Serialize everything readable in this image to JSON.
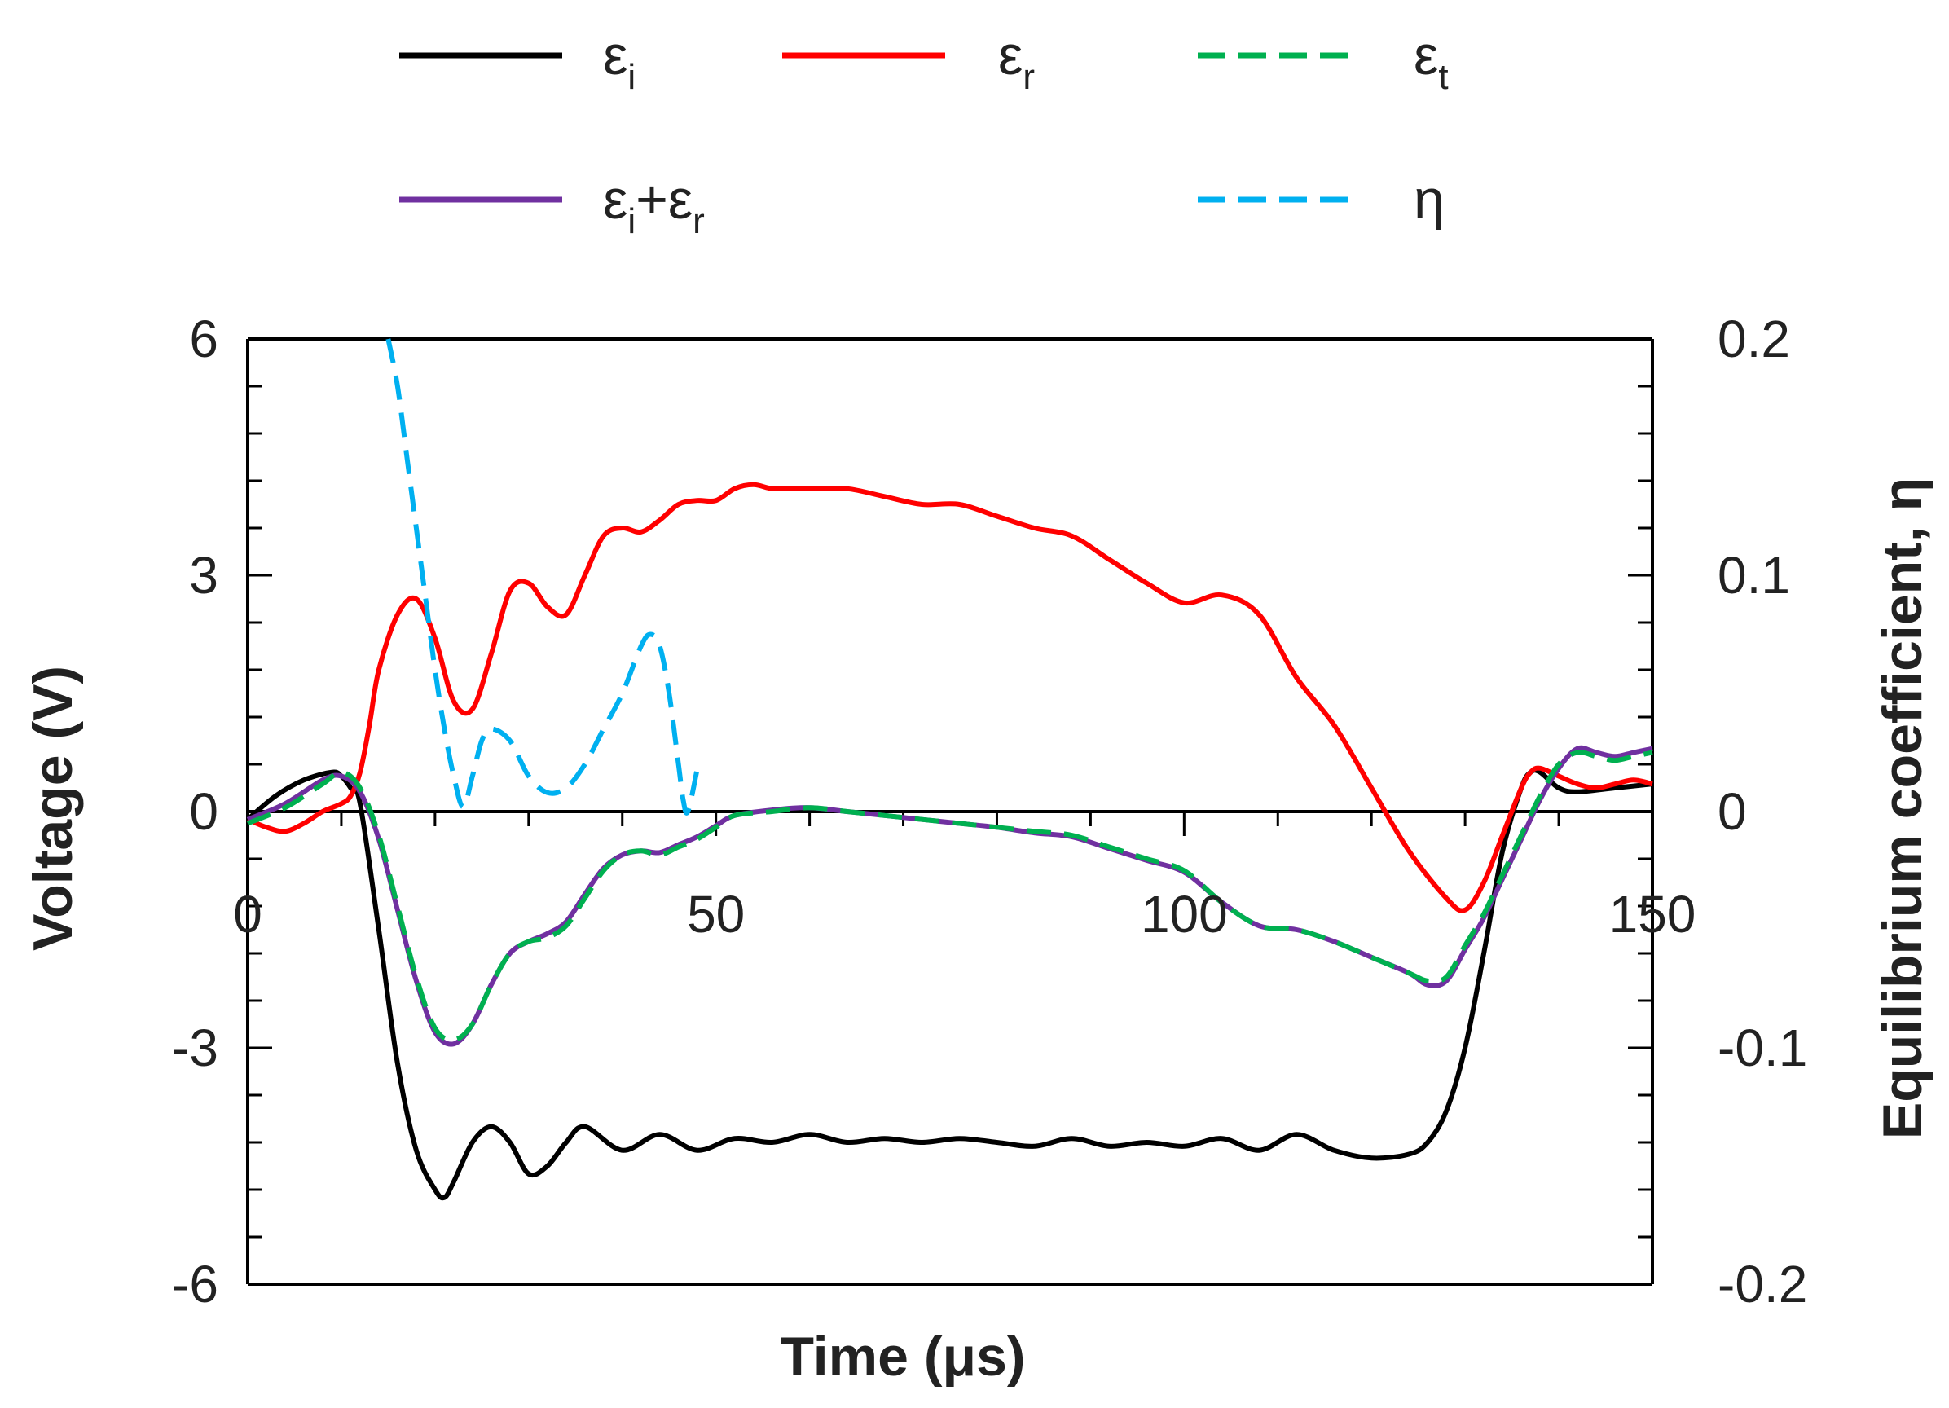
{
  "chart_data": {
    "type": "line",
    "title": "",
    "xlabel": "Time (μs)",
    "ylabel": "Voltage (V)",
    "y2label": "Equilibrium coefficient, η",
    "xlim": [
      0,
      150
    ],
    "ylim": [
      -6,
      6
    ],
    "y2lim": [
      -0.2,
      0.2
    ],
    "x_ticks": [
      "0",
      "50",
      "100",
      "150"
    ],
    "y_ticks": [
      "6",
      "3",
      "0",
      "-3",
      "-6"
    ],
    "y2_ticks": [
      "0.2",
      "0.1",
      "0",
      "-0.1",
      "-0.2"
    ],
    "legend_position": "top",
    "series": [
      {
        "name": "εi",
        "legend_base": "ε",
        "legend_sub": "i",
        "color": "#000000",
        "dash": "solid",
        "axis": "left",
        "x": [
          0,
          3,
          6,
          9,
          10,
          11,
          12,
          14,
          16,
          18,
          20,
          21,
          22,
          24,
          26,
          28,
          30,
          32,
          34,
          36,
          40,
          44,
          48,
          52,
          56,
          60,
          64,
          68,
          72,
          76,
          80,
          84,
          88,
          92,
          96,
          100,
          104,
          108,
          112,
          116,
          120,
          124,
          126,
          128,
          130,
          132,
          134,
          136,
          137,
          138,
          140,
          142,
          146,
          150
        ],
        "y": [
          -0.1,
          0.2,
          0.4,
          0.5,
          0.45,
          0.3,
          0.1,
          -1.5,
          -3.2,
          -4.3,
          -4.8,
          -4.9,
          -4.7,
          -4.2,
          -4.0,
          -4.2,
          -4.6,
          -4.5,
          -4.2,
          -4.0,
          -4.3,
          -4.1,
          -4.3,
          -4.15,
          -4.2,
          -4.1,
          -4.2,
          -4.15,
          -4.2,
          -4.15,
          -4.2,
          -4.25,
          -4.15,
          -4.25,
          -4.2,
          -4.25,
          -4.15,
          -4.3,
          -4.1,
          -4.3,
          -4.4,
          -4.35,
          -4.2,
          -3.8,
          -3.0,
          -1.8,
          -0.5,
          0.3,
          0.5,
          0.5,
          0.3,
          0.25,
          0.3,
          0.35
        ]
      },
      {
        "name": "εr",
        "legend_base": "ε",
        "legend_sub": "r",
        "color": "#ff0000",
        "dash": "solid",
        "axis": "left",
        "x": [
          0,
          2,
          4,
          6,
          8,
          10,
          11,
          12,
          13,
          14,
          16,
          18,
          20,
          22,
          24,
          26,
          28,
          30,
          32,
          34,
          36,
          38,
          40,
          42,
          44,
          46,
          48,
          50,
          52,
          54,
          56,
          58,
          60,
          64,
          68,
          72,
          76,
          80,
          84,
          88,
          92,
          96,
          100,
          104,
          108,
          112,
          116,
          120,
          124,
          128,
          130,
          132,
          134,
          136,
          137,
          138,
          140,
          142,
          144,
          146,
          148,
          150
        ],
        "y": [
          -0.1,
          -0.2,
          -0.25,
          -0.15,
          0.0,
          0.1,
          0.2,
          0.5,
          1.1,
          1.8,
          2.5,
          2.7,
          2.2,
          1.4,
          1.3,
          2.0,
          2.8,
          2.9,
          2.6,
          2.5,
          3.0,
          3.5,
          3.6,
          3.55,
          3.7,
          3.9,
          3.95,
          3.95,
          4.1,
          4.15,
          4.1,
          4.1,
          4.1,
          4.1,
          4.0,
          3.9,
          3.9,
          3.75,
          3.6,
          3.5,
          3.2,
          2.9,
          2.65,
          2.75,
          2.5,
          1.7,
          1.1,
          0.3,
          -0.5,
          -1.1,
          -1.25,
          -0.9,
          -0.3,
          0.3,
          0.5,
          0.55,
          0.45,
          0.35,
          0.3,
          0.35,
          0.4,
          0.35
        ]
      },
      {
        "name": "εt",
        "legend_base": "ε",
        "legend_sub": "t",
        "color": "#00b050",
        "dash": "dashed",
        "axis": "left",
        "x": [
          0,
          4,
          8,
          10,
          12,
          14,
          16,
          18,
          20,
          22,
          24,
          26,
          28,
          30,
          32,
          34,
          36,
          38,
          40,
          42,
          44,
          46,
          48,
          50,
          52,
          56,
          60,
          64,
          68,
          72,
          76,
          80,
          84,
          88,
          92,
          96,
          100,
          104,
          108,
          112,
          116,
          120,
          124,
          126,
          128,
          130,
          132,
          134,
          136,
          138,
          140,
          142,
          144,
          146,
          148,
          150
        ],
        "y": [
          -0.15,
          0.05,
          0.35,
          0.5,
          0.3,
          -0.3,
          -1.2,
          -2.1,
          -2.75,
          -2.9,
          -2.7,
          -2.2,
          -1.8,
          -1.65,
          -1.6,
          -1.45,
          -1.1,
          -0.75,
          -0.55,
          -0.5,
          -0.55,
          -0.45,
          -0.35,
          -0.2,
          -0.05,
          0.0,
          0.05,
          0.0,
          -0.05,
          -0.1,
          -0.15,
          -0.2,
          -0.25,
          -0.3,
          -0.45,
          -0.6,
          -0.75,
          -1.15,
          -1.45,
          -1.5,
          -1.65,
          -1.85,
          -2.05,
          -2.15,
          -2.1,
          -1.7,
          -1.3,
          -0.8,
          -0.3,
          0.2,
          0.6,
          0.75,
          0.7,
          0.65,
          0.7,
          0.75
        ]
      },
      {
        "name": "εi+εr",
        "legend_base": "ε",
        "legend_sub": "i",
        "legend_mid": "+ε",
        "legend_sub2": "r",
        "color": "#7030a0",
        "dash": "solid",
        "axis": "left",
        "x": [
          0,
          4,
          8,
          10,
          12,
          14,
          16,
          18,
          20,
          22,
          24,
          26,
          28,
          30,
          32,
          34,
          36,
          38,
          40,
          42,
          44,
          46,
          48,
          50,
          52,
          56,
          60,
          64,
          68,
          72,
          76,
          80,
          84,
          88,
          92,
          96,
          100,
          104,
          108,
          112,
          116,
          120,
          124,
          126,
          128,
          130,
          132,
          134,
          136,
          138,
          140,
          142,
          144,
          146,
          148,
          150
        ],
        "y": [
          -0.1,
          0.1,
          0.4,
          0.45,
          0.25,
          -0.35,
          -1.25,
          -2.15,
          -2.8,
          -2.95,
          -2.7,
          -2.2,
          -1.8,
          -1.65,
          -1.55,
          -1.4,
          -1.05,
          -0.72,
          -0.55,
          -0.5,
          -0.52,
          -0.42,
          -0.32,
          -0.18,
          -0.05,
          0.02,
          0.05,
          0.0,
          -0.05,
          -0.1,
          -0.15,
          -0.2,
          -0.27,
          -0.32,
          -0.47,
          -0.62,
          -0.77,
          -1.15,
          -1.45,
          -1.5,
          -1.65,
          -1.85,
          -2.05,
          -2.2,
          -2.15,
          -1.75,
          -1.35,
          -0.85,
          -0.35,
          0.15,
          0.55,
          0.8,
          0.75,
          0.7,
          0.75,
          0.8
        ]
      },
      {
        "name": "η",
        "legend_base": "η",
        "color": "#00b0f0",
        "dash": "dashed",
        "axis": "right",
        "x": [
          15,
          16,
          17,
          18,
          19,
          20,
          21,
          22,
          23,
          24,
          25,
          26,
          28,
          30,
          32,
          34,
          36,
          38,
          40,
          42,
          43,
          44,
          45,
          46,
          46.5,
          47,
          48
        ],
        "y": [
          0.2,
          0.18,
          0.15,
          0.12,
          0.09,
          0.06,
          0.035,
          0.015,
          0.002,
          0.015,
          0.03,
          0.035,
          0.03,
          0.015,
          0.008,
          0.01,
          0.02,
          0.035,
          0.05,
          0.07,
          0.075,
          0.07,
          0.05,
          0.02,
          0.005,
          0.0,
          0.018
        ]
      }
    ]
  }
}
